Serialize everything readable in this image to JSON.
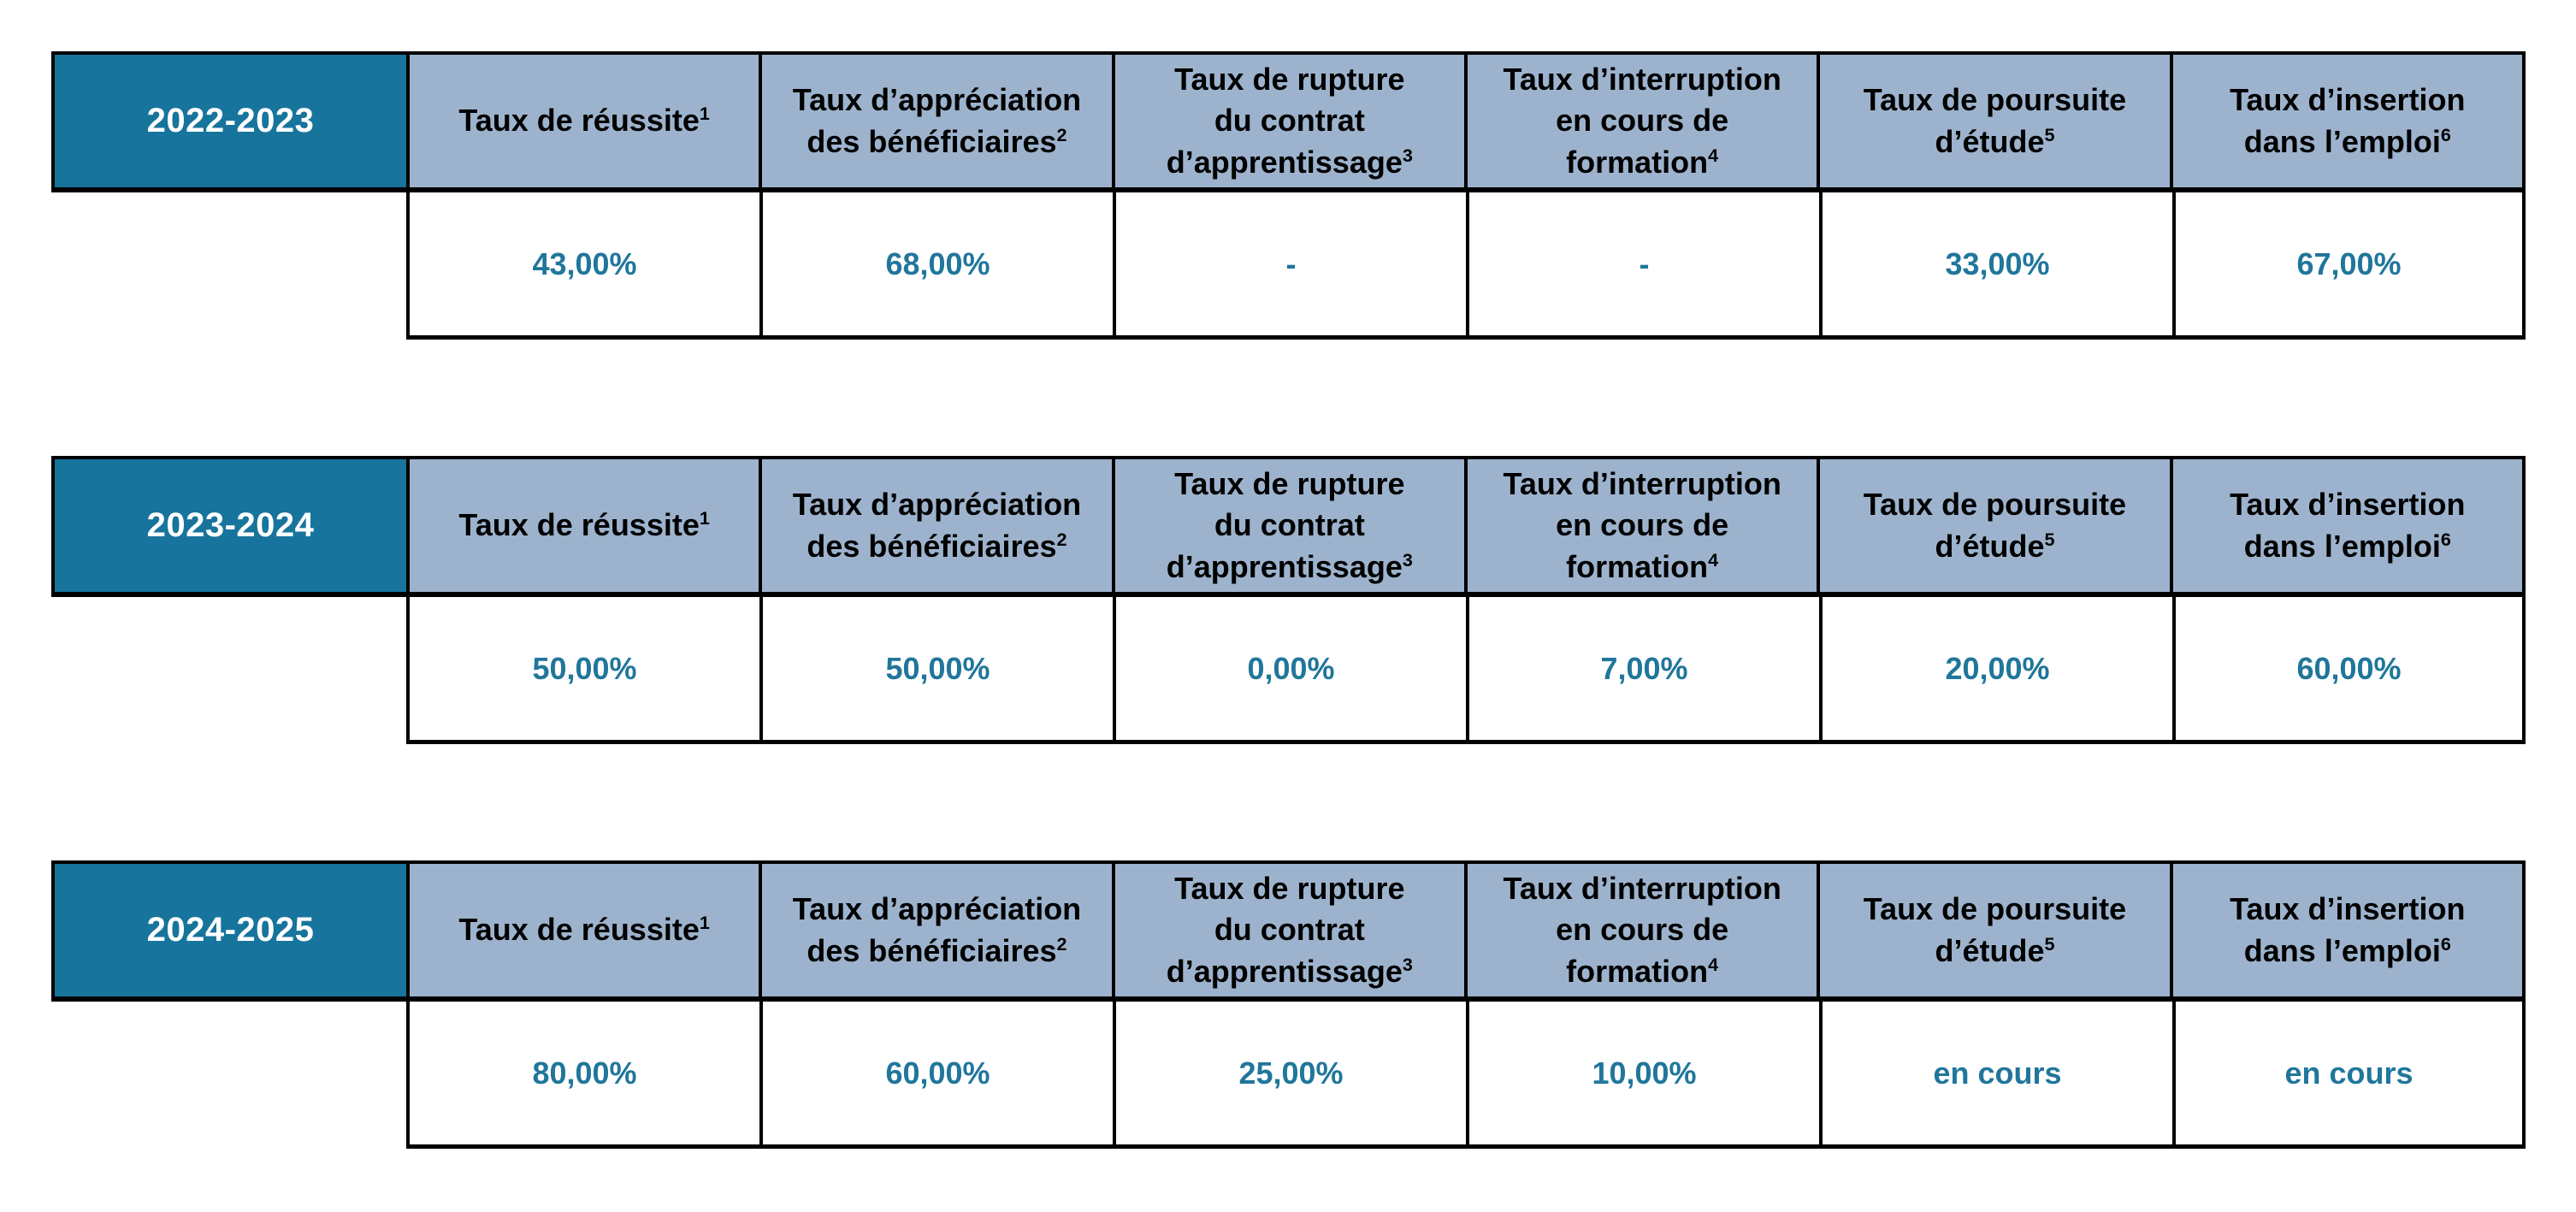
{
  "colors": {
    "year_background": "#17749C",
    "header_background": "#9DB3CD",
    "value_text": "#20769B",
    "border": "#000000"
  },
  "tables": [
    {
      "year": "2022-2023",
      "headers": [
        {
          "label": "Taux de réussite",
          "sup": "1"
        },
        {
          "label": "Taux d’appréciation\ndes bénéficiaires",
          "sup": "2"
        },
        {
          "label": "Taux de rupture\ndu contrat\nd’apprentissage",
          "sup": "3"
        },
        {
          "label": "Taux d’interruption\nen cours de\nformation",
          "sup": "4"
        },
        {
          "label": "Taux de poursuite\nd’étude",
          "sup": "5"
        },
        {
          "label": "Taux d’insertion\ndans l’emploi",
          "sup": "6"
        }
      ],
      "values": [
        "43,00%",
        "68,00%",
        "-",
        "-",
        "33,00%",
        "67,00%"
      ]
    },
    {
      "year": "2023-2024",
      "headers": [
        {
          "label": "Taux de réussite",
          "sup": "1"
        },
        {
          "label": "Taux d’appréciation\ndes bénéficiaires",
          "sup": "2"
        },
        {
          "label": "Taux de rupture\ndu contrat\nd’apprentissage",
          "sup": "3"
        },
        {
          "label": "Taux d’interruption\nen cours de\nformation",
          "sup": "4"
        },
        {
          "label": "Taux de poursuite\nd’étude",
          "sup": "5"
        },
        {
          "label": "Taux d’insertion\ndans l’emploi",
          "sup": "6"
        }
      ],
      "values": [
        "50,00%",
        "50,00%",
        "0,00%",
        "7,00%",
        "20,00%",
        "60,00%"
      ]
    },
    {
      "year": "2024-2025",
      "headers": [
        {
          "label": "Taux de réussite",
          "sup": "1"
        },
        {
          "label": "Taux d’appréciation\ndes bénéficiaires",
          "sup": "2"
        },
        {
          "label": "Taux de rupture\ndu contrat\nd’apprentissage",
          "sup": "3"
        },
        {
          "label": "Taux d’interruption\nen cours de\nformation",
          "sup": "4"
        },
        {
          "label": "Taux de poursuite\nd’étude",
          "sup": "5"
        },
        {
          "label": "Taux d’insertion\ndans l’emploi",
          "sup": "6"
        }
      ],
      "values": [
        "80,00%",
        "60,00%",
        "25,00%",
        "10,00%",
        "en cours",
        "en cours"
      ]
    }
  ]
}
